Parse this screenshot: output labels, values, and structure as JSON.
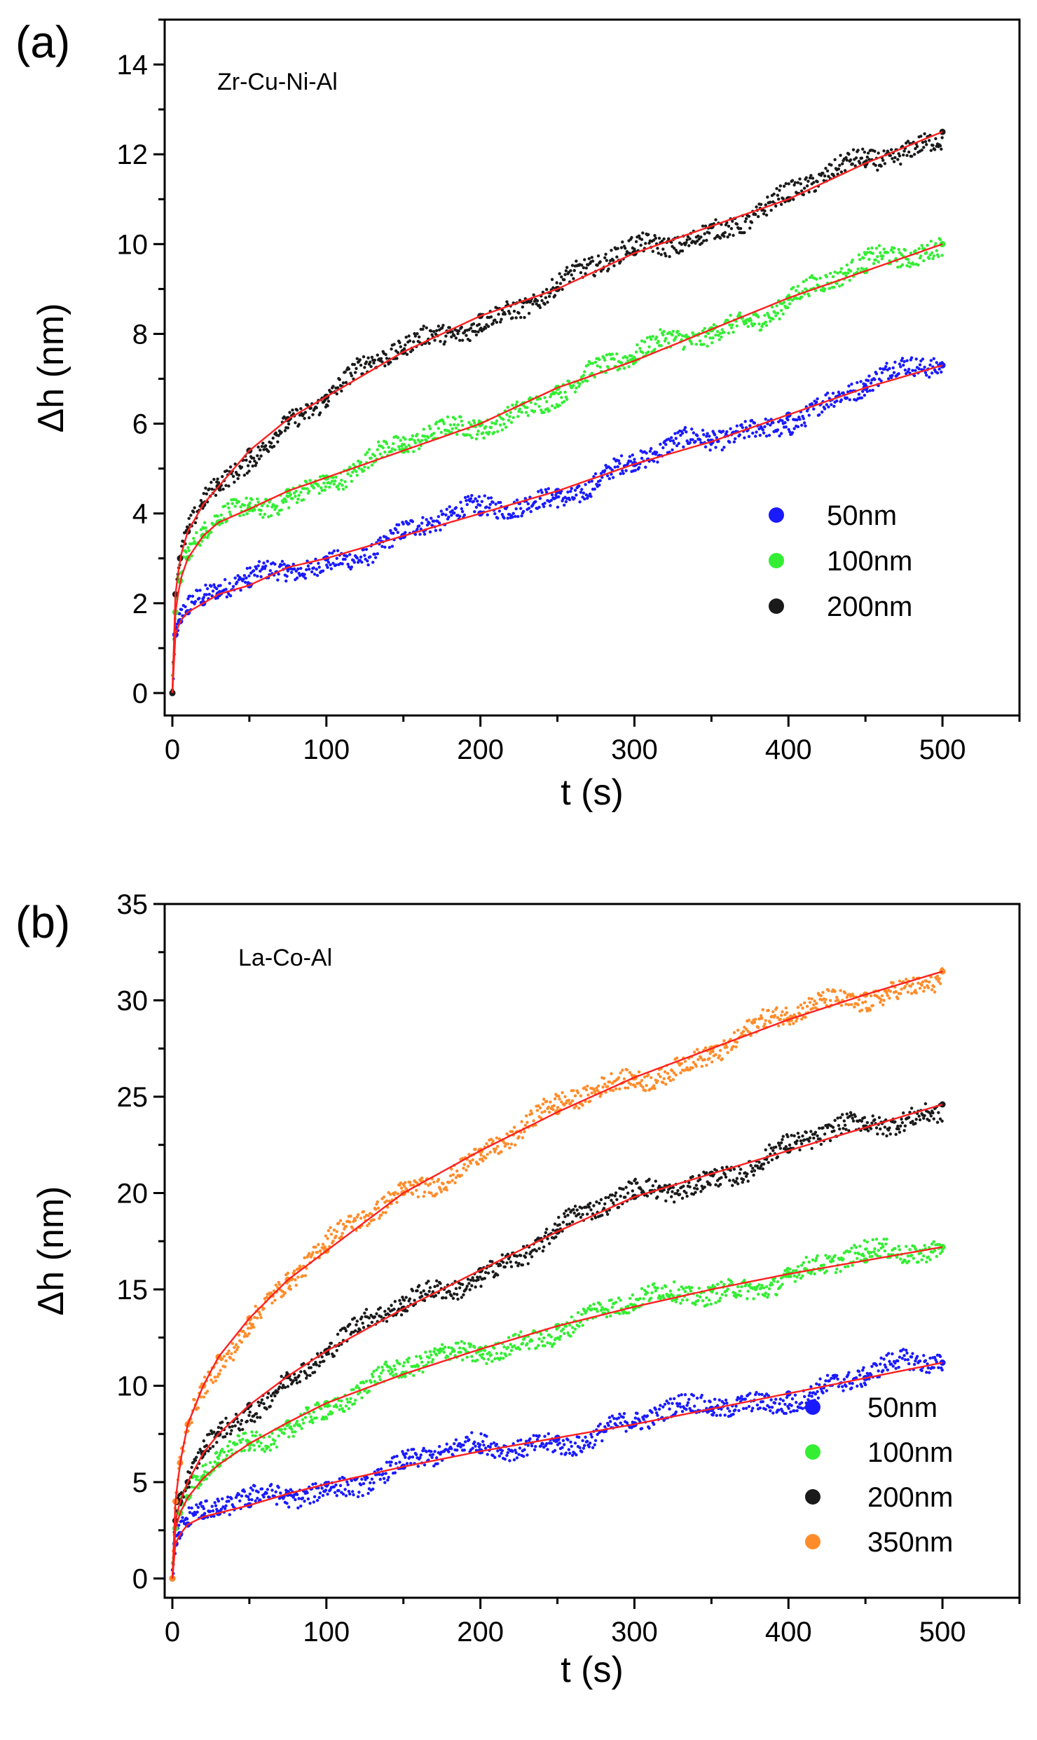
{
  "chart_data": [
    {
      "type": "scatter",
      "panel_label": "(a)",
      "annotation": "Zr-Cu-Ni-Al",
      "xlabel": "t (s)",
      "ylabel": "Δh (nm)",
      "xlim": [
        -5,
        550
      ],
      "ylim": [
        -0.5,
        15
      ],
      "xticks": [
        0,
        100,
        200,
        300,
        400,
        500
      ],
      "yticks": [
        0,
        2,
        4,
        6,
        8,
        10,
        12,
        14
      ],
      "legend_position": "bottom-right",
      "fit_line_color": "#ff2020",
      "series": [
        {
          "name": "50nm",
          "color": "#1a1aff",
          "x": [
            0,
            2,
            5,
            10,
            20,
            30,
            50,
            75,
            100,
            150,
            200,
            250,
            300,
            350,
            400,
            450,
            500
          ],
          "y": [
            0,
            1.3,
            1.6,
            1.8,
            2.0,
            2.2,
            2.4,
            2.8,
            3.0,
            3.5,
            4.0,
            4.5,
            5.1,
            5.6,
            6.2,
            6.8,
            7.3
          ]
        },
        {
          "name": "100nm",
          "color": "#33ee33",
          "x": [
            0,
            2,
            5,
            10,
            20,
            30,
            50,
            75,
            100,
            150,
            200,
            250,
            300,
            350,
            400,
            450,
            500
          ],
          "y": [
            0,
            1.8,
            2.5,
            3.0,
            3.5,
            3.8,
            4.1,
            4.5,
            4.8,
            5.4,
            6.0,
            6.8,
            7.4,
            8.1,
            8.8,
            9.4,
            10.0
          ]
        },
        {
          "name": "200nm",
          "color": "#1a1a1a",
          "x": [
            0,
            2,
            5,
            10,
            20,
            30,
            50,
            75,
            100,
            150,
            200,
            250,
            300,
            350,
            400,
            450,
            500
          ],
          "y": [
            0,
            2.2,
            3.0,
            3.6,
            4.2,
            4.6,
            5.4,
            6.1,
            6.6,
            7.6,
            8.4,
            9.0,
            9.8,
            10.4,
            11.0,
            11.8,
            12.5
          ]
        }
      ]
    },
    {
      "type": "scatter",
      "panel_label": "(b)",
      "annotation": "La-Co-Al",
      "xlabel": "t (s)",
      "ylabel": "Δh (nm)",
      "xlim": [
        -5,
        550
      ],
      "ylim": [
        -1,
        35
      ],
      "xticks": [
        0,
        100,
        200,
        300,
        400,
        500
      ],
      "yticks": [
        0,
        5,
        10,
        15,
        20,
        25,
        30,
        35
      ],
      "legend_position": "bottom-right",
      "fit_line_color": "#ff2020",
      "series": [
        {
          "name": "50nm",
          "color": "#1a1aff",
          "x": [
            0,
            2,
            5,
            10,
            20,
            30,
            50,
            75,
            100,
            150,
            200,
            250,
            300,
            350,
            400,
            450,
            500
          ],
          "y": [
            0,
            1.8,
            2.3,
            2.8,
            3.2,
            3.4,
            3.8,
            4.4,
            4.9,
            5.8,
            6.6,
            7.3,
            8.0,
            8.8,
            9.6,
            10.4,
            11.2
          ]
        },
        {
          "name": "100nm",
          "color": "#33ee33",
          "x": [
            0,
            2,
            5,
            10,
            20,
            30,
            50,
            75,
            100,
            150,
            200,
            250,
            300,
            350,
            400,
            450,
            500
          ],
          "y": [
            0,
            2.6,
            3.4,
            4.2,
            5.2,
            5.9,
            7.0,
            8.1,
            9.1,
            10.6,
            11.9,
            13.1,
            14.1,
            15.0,
            15.8,
            16.5,
            17.2
          ]
        },
        {
          "name": "200nm",
          "color": "#1a1a1a",
          "x": [
            0,
            2,
            5,
            10,
            20,
            30,
            50,
            75,
            100,
            150,
            200,
            250,
            300,
            350,
            400,
            450,
            500
          ],
          "y": [
            0,
            3.0,
            4.0,
            5.0,
            6.5,
            7.5,
            9.0,
            10.5,
            11.8,
            14.0,
            16.0,
            18.0,
            19.8,
            21.0,
            22.2,
            23.4,
            24.6
          ]
        },
        {
          "name": "350nm",
          "color": "#ff8c2a",
          "x": [
            0,
            2,
            5,
            10,
            20,
            30,
            50,
            75,
            100,
            150,
            200,
            250,
            300,
            350,
            400,
            450,
            500
          ],
          "y": [
            0,
            4.0,
            6.0,
            8.0,
            10.0,
            11.5,
            13.5,
            15.5,
            17.0,
            20.0,
            22.2,
            24.2,
            26.0,
            27.5,
            29.0,
            30.3,
            31.5
          ]
        }
      ]
    }
  ]
}
